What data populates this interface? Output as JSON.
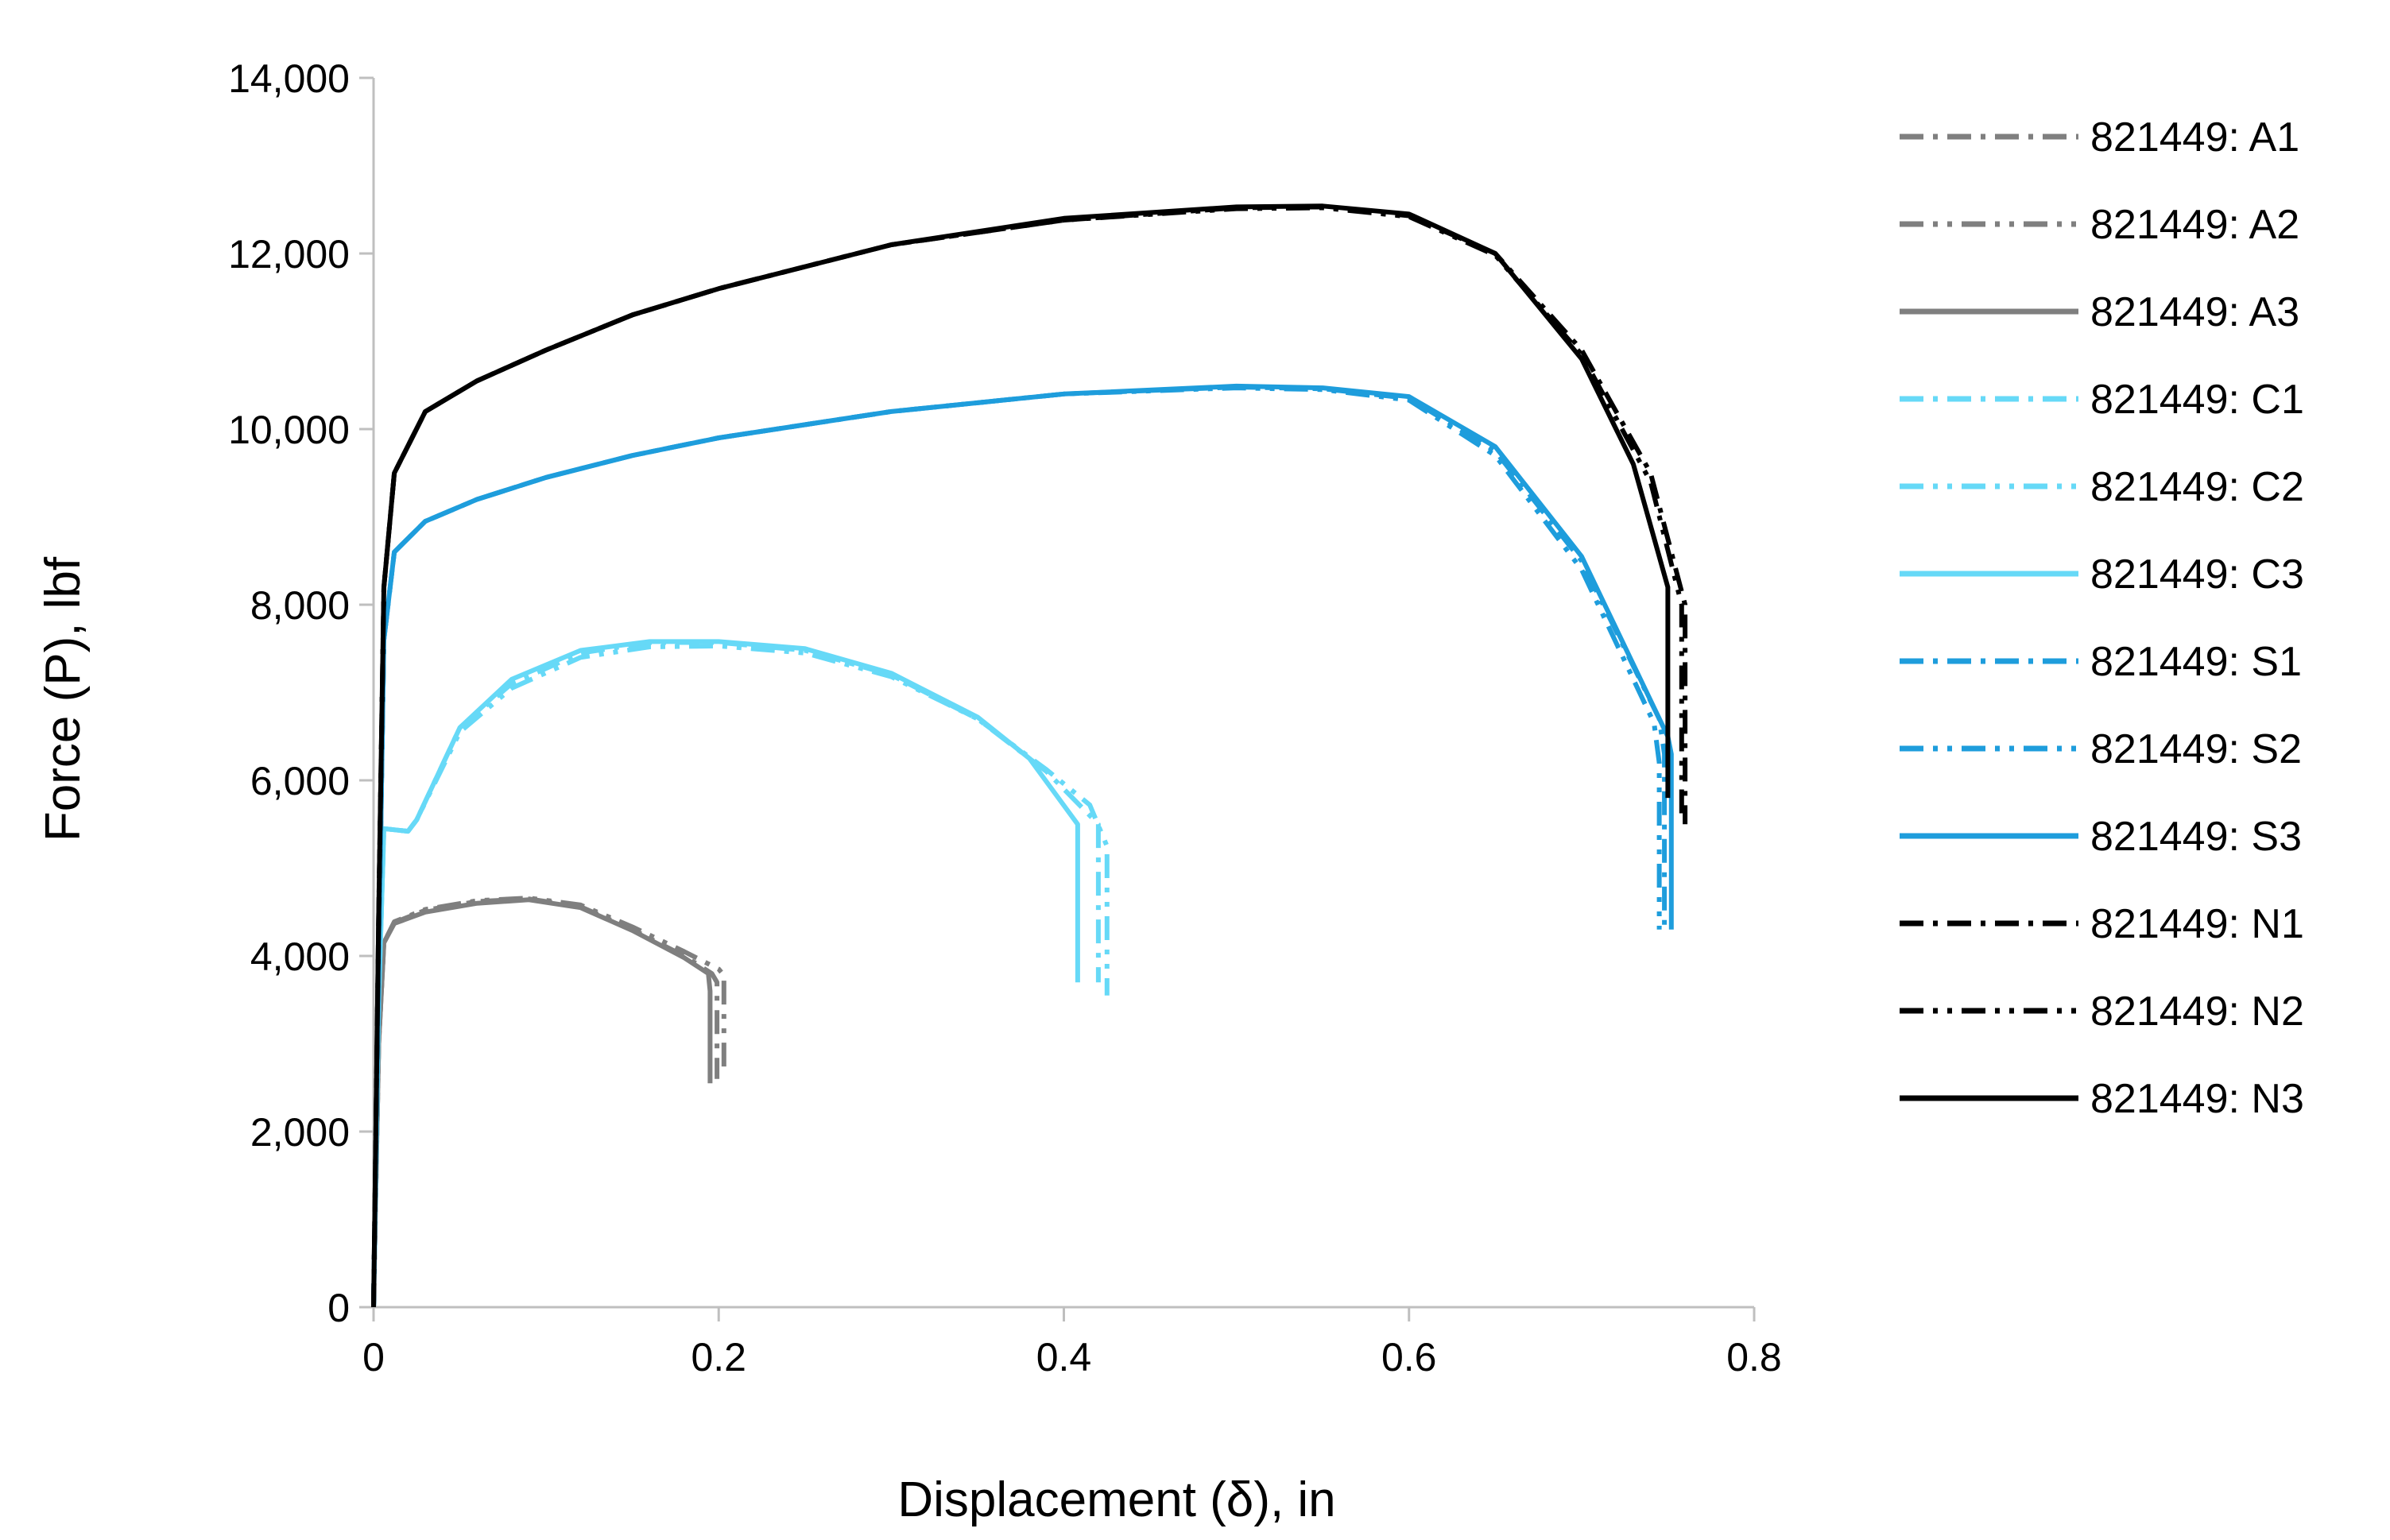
{
  "chart_data": {
    "type": "line",
    "title": "",
    "xlabel": "Displacement (δ), in",
    "ylabel": "Force (P), lbf",
    "xlim": [
      0,
      0.8
    ],
    "ylim": [
      0,
      14000
    ],
    "x_ticks": [
      0,
      0.2,
      0.4,
      0.6,
      0.8
    ],
    "x_tick_labels": [
      "0",
      "0.2",
      "0.4",
      "0.6",
      "0.8"
    ],
    "y_ticks": [
      0,
      2000,
      4000,
      6000,
      8000,
      10000,
      12000,
      14000
    ],
    "y_tick_labels": [
      "0",
      "2,000",
      "4,000",
      "6,000",
      "8,000",
      "10,000",
      "12,000",
      "14,000"
    ],
    "grid": false,
    "legend_position": "right",
    "series": [
      {
        "name": "821449: A1",
        "color": "#7f7f7f",
        "dash": "dash-dot",
        "x": [
          0,
          0.003,
          0.006,
          0.012,
          0.03,
          0.06,
          0.09,
          0.12,
          0.15,
          0.18,
          0.196,
          0.199,
          0.199
        ],
        "y": [
          0,
          3000,
          4150,
          4380,
          4520,
          4620,
          4650,
          4560,
          4300,
          4000,
          3800,
          3700,
          2600
        ]
      },
      {
        "name": "821449: A2",
        "color": "#7f7f7f",
        "dash": "dash-dot-dot",
        "x": [
          0,
          0.003,
          0.006,
          0.012,
          0.03,
          0.06,
          0.09,
          0.12,
          0.15,
          0.18,
          0.2,
          0.203,
          0.203
        ],
        "y": [
          0,
          3000,
          4150,
          4390,
          4530,
          4630,
          4660,
          4580,
          4330,
          4050,
          3850,
          3780,
          2700
        ]
      },
      {
        "name": "821449: A3",
        "color": "#7f7f7f",
        "dash": "solid",
        "x": [
          0,
          0.003,
          0.006,
          0.012,
          0.03,
          0.06,
          0.09,
          0.12,
          0.15,
          0.18,
          0.194,
          0.195,
          0.195
        ],
        "y": [
          0,
          3000,
          4150,
          4370,
          4500,
          4600,
          4640,
          4550,
          4290,
          3980,
          3800,
          3600,
          2550
        ]
      },
      {
        "name": "821449: C1",
        "color": "#66d9f7",
        "dash": "dash-dot",
        "x": [
          0,
          0.003,
          0.006,
          0.02,
          0.025,
          0.05,
          0.08,
          0.12,
          0.16,
          0.2,
          0.25,
          0.3,
          0.35,
          0.39,
          0.41,
          0.42,
          0.42
        ],
        "y": [
          0,
          3500,
          5450,
          5420,
          5550,
          6600,
          7100,
          7450,
          7570,
          7570,
          7480,
          7200,
          6700,
          6100,
          5700,
          5500,
          3700
        ]
      },
      {
        "name": "821449: C2",
        "color": "#66d9f7",
        "dash": "dash-dot-dot",
        "x": [
          0,
          0.003,
          0.006,
          0.02,
          0.025,
          0.05,
          0.08,
          0.12,
          0.16,
          0.2,
          0.25,
          0.3,
          0.35,
          0.39,
          0.415,
          0.425,
          0.425
        ],
        "y": [
          0,
          3500,
          5450,
          5420,
          5550,
          6550,
          7050,
          7400,
          7520,
          7530,
          7450,
          7180,
          6700,
          6120,
          5720,
          5250,
          3550
        ]
      },
      {
        "name": "821449: C3",
        "color": "#66d9f7",
        "dash": "solid",
        "x": [
          0,
          0.003,
          0.006,
          0.02,
          0.025,
          0.05,
          0.08,
          0.12,
          0.16,
          0.2,
          0.25,
          0.3,
          0.35,
          0.38,
          0.408,
          0.408
        ],
        "y": [
          0,
          3500,
          5450,
          5420,
          5550,
          6600,
          7150,
          7480,
          7580,
          7580,
          7500,
          7220,
          6720,
          6250,
          5500,
          3700
        ]
      },
      {
        "name": "821449: S1",
        "color": "#1e9ddc",
        "dash": "dash-dot",
        "x": [
          0,
          0.003,
          0.006,
          0.012,
          0.03,
          0.06,
          0.1,
          0.15,
          0.2,
          0.3,
          0.4,
          0.5,
          0.55,
          0.6,
          0.65,
          0.7,
          0.745,
          0.748,
          0.748
        ],
        "y": [
          0,
          4000,
          7600,
          8600,
          8950,
          9200,
          9450,
          9700,
          9900,
          10200,
          10400,
          10480,
          10460,
          10350,
          9750,
          8500,
          6700,
          6300,
          4300
        ]
      },
      {
        "name": "821449: S2",
        "color": "#1e9ddc",
        "dash": "dash-dot-dot",
        "x": [
          0,
          0.003,
          0.006,
          0.012,
          0.03,
          0.06,
          0.1,
          0.15,
          0.2,
          0.3,
          0.4,
          0.5,
          0.55,
          0.6,
          0.65,
          0.7,
          0.742,
          0.745,
          0.745
        ],
        "y": [
          0,
          4000,
          7600,
          8600,
          8950,
          9200,
          9450,
          9700,
          9900,
          10200,
          10400,
          10470,
          10450,
          10330,
          9700,
          8400,
          6650,
          6200,
          4300
        ]
      },
      {
        "name": "821449: S3",
        "color": "#1e9ddc",
        "dash": "solid",
        "x": [
          0,
          0.003,
          0.006,
          0.012,
          0.03,
          0.06,
          0.1,
          0.15,
          0.2,
          0.3,
          0.4,
          0.5,
          0.55,
          0.6,
          0.65,
          0.7,
          0.75,
          0.752,
          0.752
        ],
        "y": [
          0,
          4000,
          7600,
          8600,
          8950,
          9200,
          9450,
          9700,
          9900,
          10200,
          10400,
          10490,
          10470,
          10370,
          9800,
          8550,
          6500,
          6300,
          4300
        ]
      },
      {
        "name": "821449: N1",
        "color": "#000000",
        "dash": "dash-dot",
        "x": [
          0,
          0.003,
          0.006,
          0.012,
          0.03,
          0.06,
          0.1,
          0.15,
          0.2,
          0.3,
          0.4,
          0.5,
          0.55,
          0.6,
          0.65,
          0.7,
          0.74,
          0.76,
          0.76
        ],
        "y": [
          0,
          4500,
          8200,
          9500,
          10200,
          10550,
          10900,
          11300,
          11600,
          12100,
          12380,
          12520,
          12530,
          12430,
          12000,
          10900,
          9500,
          8000,
          5500
        ]
      },
      {
        "name": "821449: N2",
        "color": "#000000",
        "dash": "dash-dot-dot",
        "x": [
          0,
          0.003,
          0.006,
          0.012,
          0.03,
          0.06,
          0.1,
          0.15,
          0.2,
          0.3,
          0.4,
          0.5,
          0.55,
          0.6,
          0.65,
          0.7,
          0.74,
          0.758,
          0.758
        ],
        "y": [
          0,
          4500,
          8200,
          9500,
          10200,
          10550,
          10900,
          11300,
          11600,
          12100,
          12380,
          12510,
          12520,
          12420,
          11980,
          10850,
          9400,
          8000,
          5600
        ]
      },
      {
        "name": "821449: N3",
        "color": "#000000",
        "dash": "solid",
        "x": [
          0,
          0.003,
          0.006,
          0.012,
          0.03,
          0.06,
          0.1,
          0.15,
          0.2,
          0.3,
          0.4,
          0.5,
          0.55,
          0.6,
          0.65,
          0.7,
          0.73,
          0.75,
          0.75
        ],
        "y": [
          0,
          4500,
          8200,
          9500,
          10200,
          10550,
          10900,
          11300,
          11600,
          12100,
          12400,
          12530,
          12540,
          12450,
          12000,
          10800,
          9600,
          8200,
          5800
        ]
      }
    ]
  }
}
